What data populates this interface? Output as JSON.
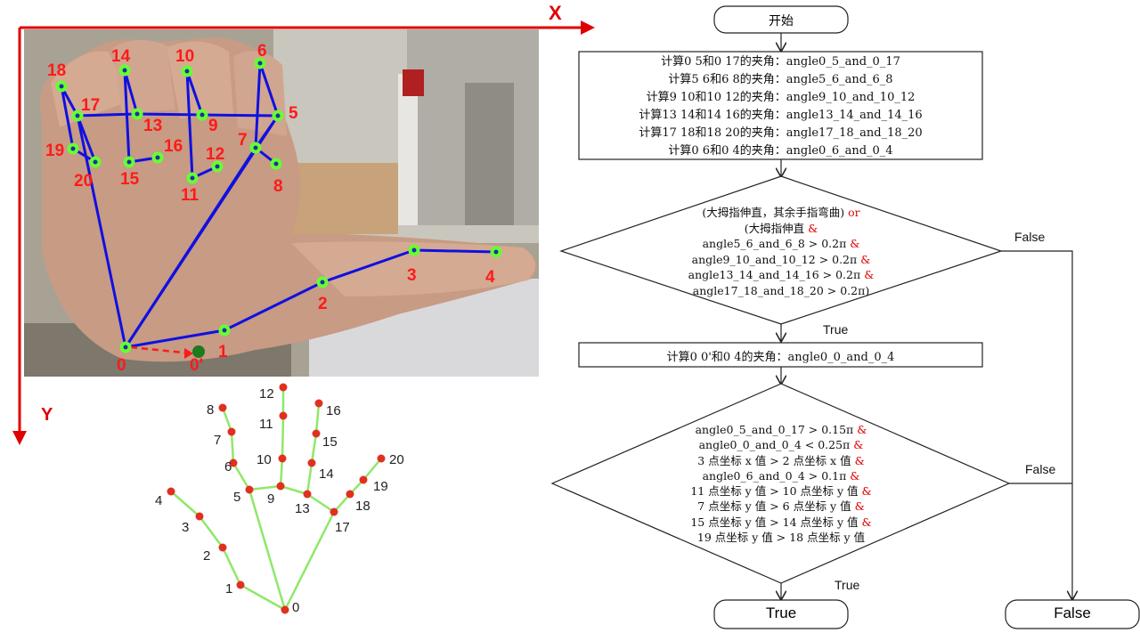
{
  "axes": {
    "x_label": "X",
    "y_label": "Y"
  },
  "photo_landmarks": [
    {
      "id": "0",
      "label": "0"
    },
    {
      "id": "1",
      "label": "1"
    },
    {
      "id": "2",
      "label": "2"
    },
    {
      "id": "3",
      "label": "3"
    },
    {
      "id": "4",
      "label": "4"
    },
    {
      "id": "5",
      "label": "5"
    },
    {
      "id": "6",
      "label": "6"
    },
    {
      "id": "7",
      "label": "7"
    },
    {
      "id": "8",
      "label": "8"
    },
    {
      "id": "9",
      "label": "9"
    },
    {
      "id": "10",
      "label": "10"
    },
    {
      "id": "11",
      "label": "11"
    },
    {
      "id": "12",
      "label": "12"
    },
    {
      "id": "13",
      "label": "13"
    },
    {
      "id": "14",
      "label": "14"
    },
    {
      "id": "15",
      "label": "15"
    },
    {
      "id": "16",
      "label": "16"
    },
    {
      "id": "17",
      "label": "17"
    },
    {
      "id": "18",
      "label": "18"
    },
    {
      "id": "19",
      "label": "19"
    },
    {
      "id": "20",
      "label": "20"
    },
    {
      "id": "0p",
      "label": "0'"
    }
  ],
  "schematic_labels": [
    "0",
    "1",
    "2",
    "3",
    "4",
    "5",
    "6",
    "7",
    "8",
    "9",
    "10",
    "11",
    "12",
    "13",
    "14",
    "15",
    "16",
    "17",
    "18",
    "19",
    "20"
  ],
  "flowchart": {
    "start": "开始",
    "process1": [
      "计算0 5和0 17的夹角：angle0_5_and_0_17",
      "计算5 6和6 8的夹角：angle5_6_and_6_8",
      "计算9 10和10 12的夹角：angle9_10_and_10_12",
      "计算13 14和14 16的夹角：angle13_14_and_14_16",
      "计算17 18和18 20的夹角：angle17_18_and_18_20",
      "计算0 6和0 4的夹角：angle0_6_and_0_4"
    ],
    "decision1": {
      "line1": "(大拇指伸直，其余手指弯曲)",
      "line1_op": "or",
      "line2": "(大拇指伸直",
      "line2_op": "&",
      "lines": [
        {
          "text": "angle5_6_and_6_8 > 0.2π",
          "op": "&"
        },
        {
          "text": "angle9_10_and_10_12 > 0.2π",
          "op": "&"
        },
        {
          "text": "angle13_14_and_14_16 > 0.2π",
          "op": "&"
        },
        {
          "text": "angle17_18_and_18_20 > 0.2π)",
          "op": ""
        }
      ]
    },
    "process2": "计算0 0'和0 4的夹角：angle0_0_and_0_4",
    "decision2": [
      {
        "text": "angle0_5_and_0_17 > 0.15π",
        "op": "&"
      },
      {
        "text": "angle0_0_and_0_4 < 0.25π",
        "op": "&"
      },
      {
        "text": "3 点坐标 x 值 > 2 点坐标 x 值",
        "op": "&"
      },
      {
        "text": "angle0_6_and_0_4 > 0.1π",
        "op": "&"
      },
      {
        "text": "11 点坐标 y 值 > 10 点坐标 y 值",
        "op": "&"
      },
      {
        "text": "7 点坐标 y 值 > 6 点坐标 y 值",
        "op": "&"
      },
      {
        "text": "15 点坐标 y 值 > 14 点坐标 y 值",
        "op": "&"
      },
      {
        "text": "19 点坐标 y 值 > 18 点坐标 y 值",
        "op": ""
      }
    ],
    "edge_labels": {
      "d1_true": "True",
      "d1_false": "False",
      "d2_true": "True",
      "d2_false": "False"
    },
    "end_true": "True",
    "end_false": "False"
  },
  "colors": {
    "axis": "#e00000",
    "skeleton": "#1010e0",
    "joint": "#66ff33",
    "label": "#ff1a1a",
    "schematic_line": "#8fe86a",
    "schematic_point": "#e03020"
  }
}
